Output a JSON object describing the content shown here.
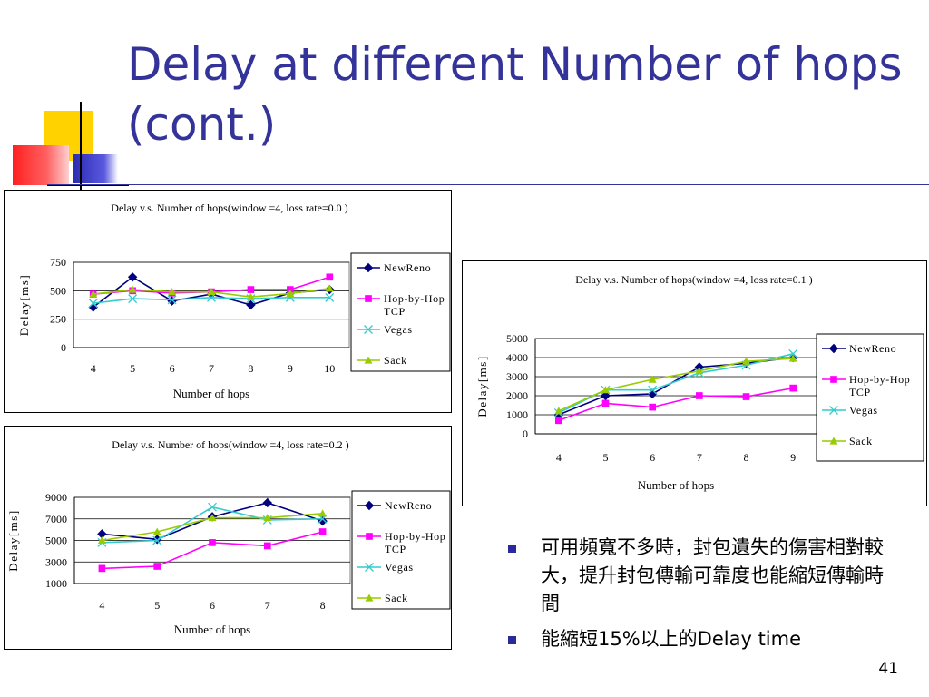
{
  "slide": {
    "title": "Delay at different Number of hops (cont.)",
    "page_number": "41",
    "accent_color": "#33339a"
  },
  "bullets": [
    "可用頻寬不多時，封包遺失的傷害相對較大，提升封包傳輸可靠度也能縮短傳輸時間",
    "能縮短15%以上的Delay time"
  ],
  "chart_data": [
    {
      "type": "line",
      "title": "Delay v.s. Number of hops(window =4, loss rate=0.0 )",
      "xlabel": "Number of hops",
      "ylabel": "Delay[ms]",
      "x": [
        4,
        5,
        6,
        7,
        8,
        9,
        10
      ],
      "ylim": [
        0,
        750
      ],
      "yticks": [
        0,
        250,
        500,
        750
      ],
      "grid": true,
      "legend": "right",
      "series": [
        {
          "name": "NewReno",
          "color": "#000080",
          "marker": "diamond",
          "values": [
            355,
            620,
            410,
            470,
            375,
            480,
            510
          ]
        },
        {
          "name": "Hop-by-Hop TCP",
          "color": "#ff00ff",
          "marker": "square",
          "values": [
            470,
            500,
            480,
            490,
            510,
            510,
            620
          ]
        },
        {
          "name": "Vegas",
          "color": "#33cccc",
          "marker": "x",
          "values": [
            390,
            430,
            420,
            440,
            430,
            440,
            440
          ]
        },
        {
          "name": "Sack",
          "color": "#99cc00",
          "marker": "triangle",
          "values": [
            470,
            510,
            490,
            490,
            445,
            475,
            520
          ]
        }
      ]
    },
    {
      "type": "line",
      "title": "Delay v.s. Number of hops(window =4, loss rate=0.1 )",
      "xlabel": "Number of hops",
      "ylabel": "Delay[ms]",
      "x": [
        4,
        5,
        6,
        7,
        8,
        9
      ],
      "ylim": [
        0,
        5000
      ],
      "yticks": [
        0,
        1000,
        2000,
        3000,
        4000,
        5000
      ],
      "grid": true,
      "legend": "right",
      "series": [
        {
          "name": "NewReno",
          "color": "#000080",
          "marker": "diamond",
          "values": [
            1000,
            2000,
            2100,
            3500,
            3700,
            4000
          ]
        },
        {
          "name": "Hop-by-Hop TCP",
          "color": "#ff00ff",
          "marker": "square",
          "values": [
            700,
            1600,
            1400,
            2000,
            1950,
            2400
          ]
        },
        {
          "name": "Vegas",
          "color": "#33cccc",
          "marker": "x",
          "values": [
            1100,
            2300,
            2300,
            3200,
            3600,
            4200
          ]
        },
        {
          "name": "Sack",
          "color": "#99cc00",
          "marker": "triangle",
          "values": [
            1200,
            2300,
            2850,
            3300,
            3800,
            3950
          ]
        }
      ]
    },
    {
      "type": "line",
      "title": "Delay v.s. Number of hops(window =4, loss rate=0.2 )",
      "xlabel": "Number of hops",
      "ylabel": "Delay[ms]",
      "x": [
        4,
        5,
        6,
        7,
        8
      ],
      "ylim": [
        1000,
        9000
      ],
      "yticks": [
        1000,
        3000,
        5000,
        7000,
        9000
      ],
      "grid": true,
      "legend": "right",
      "series": [
        {
          "name": "NewReno",
          "color": "#000080",
          "marker": "diamond",
          "values": [
            5600,
            5100,
            7200,
            8500,
            6800
          ]
        },
        {
          "name": "Hop-by-Hop TCP",
          "color": "#ff00ff",
          "marker": "square",
          "values": [
            2400,
            2600,
            4800,
            4500,
            5800
          ]
        },
        {
          "name": "Vegas",
          "color": "#33cccc",
          "marker": "x",
          "values": [
            4800,
            5000,
            8100,
            6900,
            7000
          ]
        },
        {
          "name": "Sack",
          "color": "#99cc00",
          "marker": "triangle",
          "values": [
            5000,
            5800,
            7100,
            7100,
            7500
          ]
        }
      ]
    }
  ]
}
